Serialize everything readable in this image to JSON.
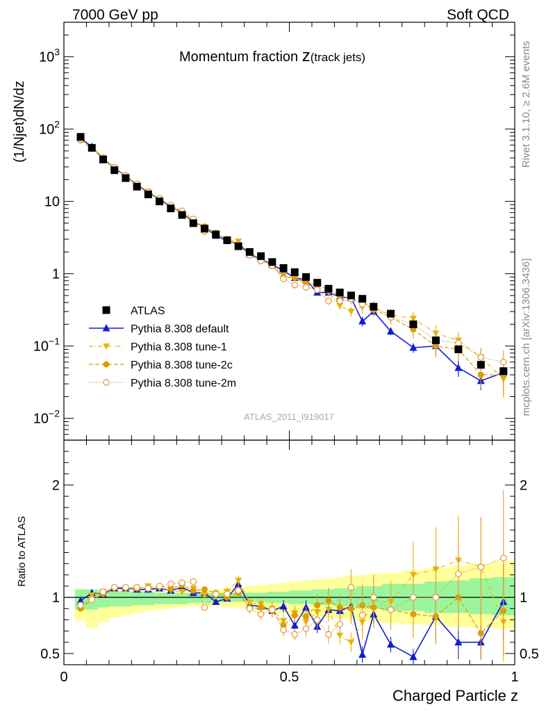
{
  "header": {
    "left": "7000 GeV pp",
    "right": "Soft QCD"
  },
  "side_text": {
    "rivet": "Rivet 3.1.10, ≥ 2.6M events",
    "mcplots": "mcplots.cern.ch [arXiv:1306.3436]"
  },
  "chart_data": {
    "type": "scatter",
    "title_main": "Momentum fraction ",
    "title_z": "z",
    "title_sub": "(track jets)",
    "analysis_tag": "ATLAS_2011_I919017",
    "xlabel": "Charged Particle z",
    "ylabel": "(1/Njet)dN/dz",
    "ratio_ylabel": "Ratio to ATLAS",
    "xlim": [
      0,
      1
    ],
    "ylim": [
      0.005,
      3000
    ],
    "yscale": "log",
    "ratio_ylim": [
      0.4,
      2.4
    ],
    "x_ticks": [
      {
        "v": 0,
        "label": "0"
      },
      {
        "v": 0.5,
        "label": "0.5"
      },
      {
        "v": 1,
        "label": "1"
      }
    ],
    "y_ticks": [
      {
        "v": 0.01,
        "base": "10",
        "exp": "−2"
      },
      {
        "v": 0.1,
        "base": "10",
        "exp": "−1"
      },
      {
        "v": 1,
        "base": "1",
        "exp": ""
      },
      {
        "v": 10,
        "base": "10",
        "exp": ""
      },
      {
        "v": 100,
        "base": "10",
        "exp": "2"
      },
      {
        "v": 1000,
        "base": "10",
        "exp": "3"
      }
    ],
    "ratio_ticks": [
      {
        "v": 0.5,
        "label": "0.5"
      },
      {
        "v": 1,
        "label": "1"
      },
      {
        "v": 2,
        "label": "2"
      }
    ],
    "legend": [
      {
        "key": "atlas",
        "label": "ATLAS"
      },
      {
        "key": "default",
        "label": "Pythia 8.308 default"
      },
      {
        "key": "tune1",
        "label": "Pythia 8.308 tune-1"
      },
      {
        "key": "tune2c",
        "label": "Pythia 8.308 tune-2c"
      },
      {
        "key": "tune2m",
        "label": "Pythia 8.308 tune-2m"
      }
    ],
    "colors": {
      "atlas": "#000000",
      "default": "#0f1ed2",
      "tune1": "#e8b500",
      "tune2c": "#e09a00",
      "tune2m": "#e0a040",
      "band_inner": "#9cf59c",
      "band_outer": "#ffff9c"
    },
    "x": [
      0.037,
      0.062,
      0.087,
      0.112,
      0.137,
      0.162,
      0.187,
      0.212,
      0.237,
      0.262,
      0.287,
      0.312,
      0.337,
      0.362,
      0.387,
      0.412,
      0.437,
      0.462,
      0.487,
      0.512,
      0.537,
      0.562,
      0.587,
      0.612,
      0.637,
      0.662,
      0.687,
      0.725,
      0.775,
      0.825,
      0.875,
      0.925,
      0.975
    ],
    "atlas": {
      "values": [
        78,
        55,
        38,
        27,
        21,
        16,
        12.5,
        10,
        8,
        6.5,
        5,
        4.2,
        3.5,
        2.9,
        2.4,
        2.0,
        1.75,
        1.45,
        1.2,
        1.05,
        0.9,
        0.75,
        0.62,
        0.55,
        0.5,
        0.45,
        0.35,
        0.28,
        0.2,
        0.12,
        0.09,
        0.055,
        0.045
      ],
      "band_inner": [
        [
          0.89,
          1.07
        ],
        [
          0.89,
          1.07
        ],
        [
          0.91,
          1.06
        ],
        [
          0.92,
          1.05
        ],
        [
          0.92,
          1.05
        ],
        [
          0.93,
          1.05
        ],
        [
          0.93,
          1.05
        ],
        [
          0.94,
          1.04
        ],
        [
          0.94,
          1.04
        ],
        [
          0.94,
          1.04
        ],
        [
          0.95,
          1.04
        ],
        [
          0.95,
          1.04
        ],
        [
          0.96,
          1.04
        ],
        [
          0.96,
          1.04
        ],
        [
          0.96,
          1.04
        ],
        [
          0.96,
          1.04
        ],
        [
          0.96,
          1.04
        ],
        [
          0.95,
          1.05
        ],
        [
          0.95,
          1.05
        ],
        [
          0.94,
          1.06
        ],
        [
          0.94,
          1.06
        ],
        [
          0.93,
          1.07
        ],
        [
          0.93,
          1.07
        ],
        [
          0.92,
          1.08
        ],
        [
          0.92,
          1.08
        ],
        [
          0.9,
          1.1
        ],
        [
          0.9,
          1.1
        ],
        [
          0.88,
          1.12
        ],
        [
          0.88,
          1.12
        ],
        [
          0.86,
          1.14
        ],
        [
          0.86,
          1.15
        ],
        [
          0.85,
          1.17
        ],
        [
          0.84,
          1.18
        ]
      ],
      "band_outer": [
        [
          0.79,
          1.08
        ],
        [
          0.73,
          1.07
        ],
        [
          0.78,
          1.07
        ],
        [
          0.82,
          1.06
        ],
        [
          0.84,
          1.06
        ],
        [
          0.86,
          1.06
        ],
        [
          0.88,
          1.06
        ],
        [
          0.89,
          1.06
        ],
        [
          0.9,
          1.05
        ],
        [
          0.91,
          1.05
        ],
        [
          0.92,
          1.05
        ],
        [
          0.92,
          1.06
        ],
        [
          0.92,
          1.07
        ],
        [
          0.91,
          1.08
        ],
        [
          0.9,
          1.09
        ],
        [
          0.89,
          1.1
        ],
        [
          0.88,
          1.11
        ],
        [
          0.87,
          1.12
        ],
        [
          0.86,
          1.13
        ],
        [
          0.85,
          1.14
        ],
        [
          0.84,
          1.15
        ],
        [
          0.83,
          1.16
        ],
        [
          0.82,
          1.17
        ],
        [
          0.81,
          1.18
        ],
        [
          0.8,
          1.19
        ],
        [
          0.79,
          1.2
        ],
        [
          0.78,
          1.21
        ],
        [
          0.77,
          1.22
        ],
        [
          0.76,
          1.24
        ],
        [
          0.75,
          1.26
        ],
        [
          0.74,
          1.28
        ],
        [
          0.73,
          1.3
        ],
        [
          0.72,
          1.32
        ]
      ]
    },
    "series": [
      {
        "name": "Pythia 8.308 default",
        "key": "default",
        "values": [
          75,
          57,
          39,
          29,
          22.5,
          17,
          13.3,
          10.8,
          8.4,
          7.0,
          5.2,
          4.4,
          3.35,
          2.85,
          2.6,
          1.85,
          1.6,
          1.33,
          1.1,
          0.88,
          0.82,
          0.55,
          0.55,
          0.48,
          0.46,
          0.22,
          0.3,
          0.16,
          0.095,
          0.1,
          0.05,
          0.033,
          0.043
        ],
        "errors": [
          0.01,
          0.01,
          0.01,
          0.01,
          0.01,
          0.02,
          0.02,
          0.02,
          0.02,
          0.02,
          0.02,
          0.03,
          0.03,
          0.03,
          0.03,
          0.04,
          0.05,
          0.05,
          0.06,
          0.06,
          0.07,
          0.08,
          0.08,
          0.08,
          0.1,
          0.15,
          0.1,
          0.12,
          0.15,
          0.25,
          0.25,
          0.25,
          0.35
        ],
        "ratio": [
          0.97,
          1.04,
          1.03,
          1.08,
          1.08,
          1.07,
          1.07,
          1.08,
          1.06,
          1.09,
          1.04,
          1.04,
          0.96,
          0.99,
          1.12,
          0.93,
          0.92,
          0.88,
          0.92,
          0.75,
          0.91,
          0.74,
          0.89,
          0.88,
          0.92,
          0.49,
          0.85,
          0.58,
          0.47,
          0.83,
          0.6,
          0.6,
          0.96
        ]
      },
      {
        "name": "Pythia 8.308 tune-1",
        "key": "tune1",
        "values": [
          72,
          56,
          40,
          29,
          22.5,
          17.2,
          13.7,
          10.8,
          8.5,
          6.8,
          5.4,
          4.3,
          3.55,
          3.0,
          2.8,
          1.9,
          1.65,
          1.3,
          0.95,
          0.9,
          0.7,
          0.65,
          0.55,
          0.36,
          0.3,
          0.35,
          0.34,
          0.27,
          0.24,
          0.15,
          0.12,
          0.07,
          0.035
        ],
        "errors": [
          0.01,
          0.01,
          0.01,
          0.01,
          0.01,
          0.02,
          0.02,
          0.02,
          0.02,
          0.02,
          0.03,
          0.03,
          0.03,
          0.04,
          0.04,
          0.05,
          0.06,
          0.07,
          0.08,
          0.08,
          0.1,
          0.1,
          0.12,
          0.12,
          0.15,
          0.2,
          0.2,
          0.2,
          0.25,
          0.3,
          0.3,
          0.35,
          0.45
        ],
        "ratio": [
          0.93,
          1.02,
          1.05,
          1.07,
          1.07,
          1.08,
          1.1,
          1.08,
          1.06,
          1.05,
          1.08,
          1.02,
          1.01,
          1.05,
          1.15,
          0.95,
          0.94,
          0.9,
          0.79,
          0.86,
          0.78,
          0.87,
          0.89,
          0.66,
          0.6,
          0.78,
          0.97,
          0.96,
          1.2,
          1.25,
          1.33,
          1.27,
          0.78
        ]
      },
      {
        "name": "Pythia 8.308 tune-2c",
        "key": "tune2c",
        "values": [
          70,
          54,
          39,
          29.5,
          22.8,
          17.3,
          13.5,
          11,
          8.6,
          7.2,
          5.3,
          4.5,
          3.65,
          2.9,
          2.5,
          1.8,
          1.6,
          1.28,
          0.9,
          0.88,
          0.75,
          0.7,
          0.6,
          0.5,
          0.45,
          0.42,
          0.32,
          0.25,
          0.17,
          0.1,
          0.09,
          0.04,
          0.04
        ],
        "errors": [
          0.01,
          0.01,
          0.01,
          0.01,
          0.01,
          0.02,
          0.02,
          0.02,
          0.02,
          0.02,
          0.03,
          0.03,
          0.03,
          0.04,
          0.04,
          0.05,
          0.06,
          0.07,
          0.08,
          0.08,
          0.1,
          0.1,
          0.12,
          0.12,
          0.15,
          0.2,
          0.2,
          0.2,
          0.25,
          0.3,
          0.3,
          0.35,
          0.45
        ],
        "ratio": [
          0.9,
          0.98,
          1.03,
          1.09,
          1.09,
          1.08,
          1.08,
          1.1,
          1.08,
          1.11,
          1.06,
          1.07,
          1.04,
          1.0,
          1.04,
          0.9,
          0.91,
          0.88,
          0.75,
          0.84,
          0.83,
          0.93,
          0.97,
          0.91,
          0.9,
          0.93,
          0.91,
          0.89,
          0.85,
          0.83,
          1.0,
          0.68,
          0.88
        ]
      },
      {
        "name": "Pythia 8.308 tune-2m",
        "key": "tune2m",
        "values": [
          72,
          54,
          40,
          29.5,
          22.8,
          17.5,
          13.5,
          11,
          8.8,
          7.4,
          5.7,
          3.85,
          3.6,
          3.0,
          2.55,
          1.8,
          1.5,
          1.3,
          0.85,
          0.7,
          0.65,
          0.6,
          0.42,
          0.42,
          0.45,
          0.38,
          0.35,
          0.25,
          0.2,
          0.12,
          0.11,
          0.07,
          0.06
        ],
        "errors": [
          0.01,
          0.01,
          0.01,
          0.01,
          0.01,
          0.02,
          0.02,
          0.02,
          0.02,
          0.02,
          0.03,
          0.03,
          0.03,
          0.04,
          0.04,
          0.05,
          0.06,
          0.07,
          0.08,
          0.08,
          0.1,
          0.1,
          0.12,
          0.12,
          0.15,
          0.2,
          0.2,
          0.2,
          0.25,
          0.3,
          0.3,
          0.35,
          0.45
        ],
        "ratio": [
          0.93,
          0.98,
          1.05,
          1.09,
          1.09,
          1.09,
          1.08,
          1.1,
          1.12,
          1.13,
          1.14,
          0.91,
          1.03,
          1.03,
          1.06,
          0.9,
          0.85,
          0.89,
          0.71,
          0.67,
          0.72,
          0.8,
          0.67,
          0.76,
          1.09,
          0.84,
          1.0,
          0.89,
          1.0,
          1.0,
          1.21,
          1.27,
          1.35
        ]
      }
    ]
  }
}
